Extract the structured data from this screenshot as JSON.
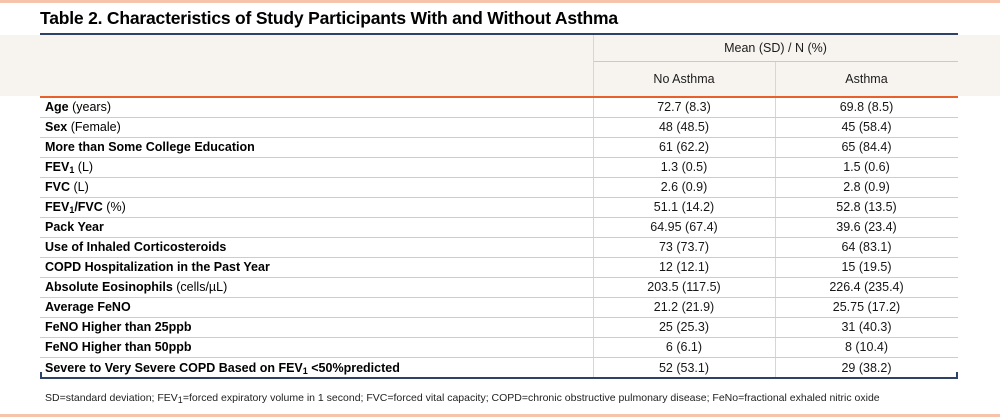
{
  "page": {
    "title": "Table 2. Characteristics of Study Participants With and Without Asthma",
    "accent_navy": "#2d4266",
    "accent_orange": "#e8602c",
    "page_border_salmon": "#f7c4ab",
    "header_band_bg": "#f7f4f0"
  },
  "table": {
    "header": {
      "group_label": "Mean (SD) / N (%)",
      "columns": [
        "No Asthma",
        "Asthma"
      ]
    },
    "rows": [
      {
        "label": [
          {
            "text": "Age",
            "bold": true
          },
          {
            "text": " (years)",
            "bold": false
          }
        ],
        "no_asthma": "72.7 (8.3)",
        "asthma": "69.8 (8.5)"
      },
      {
        "label": [
          {
            "text": "Sex",
            "bold": true
          },
          {
            "text": " (Female)",
            "bold": false
          }
        ],
        "no_asthma": "48 (48.5)",
        "asthma": "45 (58.4)"
      },
      {
        "label": [
          {
            "text": "More than Some College Education",
            "bold": true
          }
        ],
        "no_asthma": "61 (62.2)",
        "asthma": "65 (84.4)"
      },
      {
        "label": [
          {
            "text": "FEV",
            "bold": true
          },
          {
            "text": "1",
            "bold": true,
            "sub": true
          },
          {
            "text": " (L)",
            "bold": false
          }
        ],
        "no_asthma": "1.3 (0.5)",
        "asthma": "1.5 (0.6)"
      },
      {
        "label": [
          {
            "text": "FVC",
            "bold": true
          },
          {
            "text": " (L)",
            "bold": false
          }
        ],
        "no_asthma": "2.6 (0.9)",
        "asthma": "2.8 (0.9)"
      },
      {
        "label": [
          {
            "text": "FEV",
            "bold": true
          },
          {
            "text": "1",
            "bold": true,
            "sub": true
          },
          {
            "text": "/FVC",
            "bold": true
          },
          {
            "text": " (%)",
            "bold": false
          }
        ],
        "no_asthma": "51.1 (14.2)",
        "asthma": "52.8 (13.5)"
      },
      {
        "label": [
          {
            "text": "Pack Year",
            "bold": true
          }
        ],
        "no_asthma": "64.95 (67.4)",
        "asthma": "39.6 (23.4)"
      },
      {
        "label": [
          {
            "text": "Use of Inhaled Corticosteroids",
            "bold": true
          }
        ],
        "no_asthma": "73 (73.7)",
        "asthma": "64 (83.1)"
      },
      {
        "label": [
          {
            "text": "COPD Hospitalization in the Past Year",
            "bold": true
          }
        ],
        "no_asthma": "12 (12.1)",
        "asthma": "15 (19.5)"
      },
      {
        "label": [
          {
            "text": "Absolute Eosinophils",
            "bold": true
          },
          {
            "text": " (cells/µL)",
            "bold": false
          }
        ],
        "no_asthma": "203.5 (117.5)",
        "asthma": "226.4 (235.4)"
      },
      {
        "label": [
          {
            "text": "Average FeNO",
            "bold": true
          }
        ],
        "no_asthma": "21.2 (21.9)",
        "asthma": "25.75 (17.2)"
      },
      {
        "label": [
          {
            "text": "FeNO Higher than 25ppb",
            "bold": true
          }
        ],
        "no_asthma": "25 (25.3)",
        "asthma": "31 (40.3)"
      },
      {
        "label": [
          {
            "text": "FeNO Higher than 50ppb",
            "bold": true
          }
        ],
        "no_asthma": "6 (6.1)",
        "asthma": "8 (10.4)"
      },
      {
        "label": [
          {
            "text": "Severe to Very Severe COPD Based on FEV",
            "bold": true
          },
          {
            "text": "1",
            "bold": true,
            "sub": true
          },
          {
            "text": " <50%predicted",
            "bold": true
          }
        ],
        "no_asthma": "52 (53.1)",
        "asthma": "29 (38.2)"
      }
    ],
    "footnote": [
      {
        "text": "SD=standard deviation; FEV"
      },
      {
        "text": "1",
        "sub": true
      },
      {
        "text": "=forced expiratory volume in 1 second; FVC=forced vital capacity; COPD=chronic obstructive pulmonary disease; FeNo=fractional exhaled nitric oxide"
      }
    ]
  }
}
